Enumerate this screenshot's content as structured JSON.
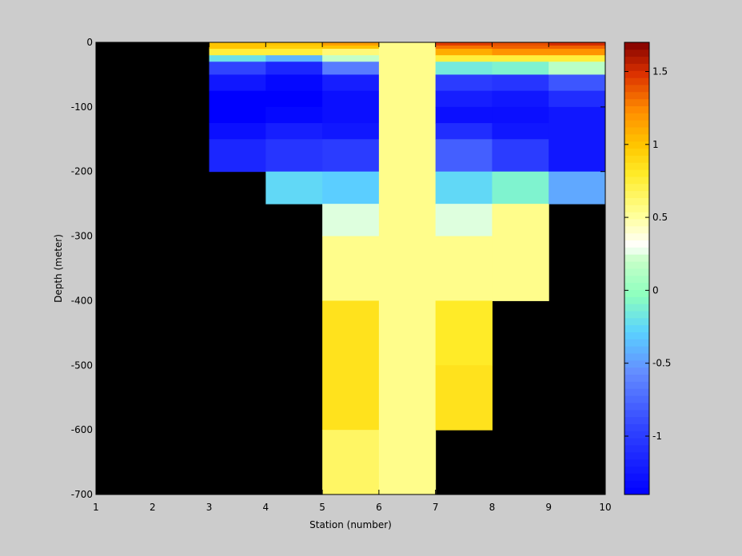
{
  "chart_data": {
    "type": "heatmap",
    "title": "",
    "xlabel": "Station (number)",
    "ylabel": "Depth (meter)",
    "xlim": [
      1,
      10
    ],
    "ylim": [
      -700,
      0
    ],
    "xticks": [
      "1",
      "2",
      "3",
      "4",
      "5",
      "6",
      "7",
      "8",
      "9",
      "10"
    ],
    "yticks": [
      "0",
      "-100",
      "-200",
      "-300",
      "-400",
      "-500",
      "-600",
      "-700"
    ],
    "colorbar": {
      "range": [
        -1.4,
        1.7
      ],
      "ticks": [
        "1.5",
        "1",
        "0.5",
        "0",
        "-0.5",
        "-1"
      ],
      "colormap": "jet-like (blue to white to yellow to dark red)"
    },
    "missing_color": "#000000",
    "background_color": "#cccccc",
    "cells": [
      {
        "x0": 3,
        "x1": 4,
        "depth_top": 0,
        "depth_bottom": -5,
        "value": 1.0
      },
      {
        "x0": 3,
        "x1": 4,
        "depth_top": -5,
        "depth_bottom": -10,
        "value": 1.0
      },
      {
        "x0": 3,
        "x1": 4,
        "depth_top": -10,
        "depth_bottom": -20,
        "value": 0.75
      },
      {
        "x0": 3,
        "x1": 4,
        "depth_top": -20,
        "depth_bottom": -30,
        "value": -0.2
      },
      {
        "x0": 3,
        "x1": 4,
        "depth_top": -30,
        "depth_bottom": -50,
        "value": -0.95
      },
      {
        "x0": 3,
        "x1": 4,
        "depth_top": -50,
        "depth_bottom": -75,
        "value": -1.25
      },
      {
        "x0": 3,
        "x1": 4,
        "depth_top": -75,
        "depth_bottom": -125,
        "value": -1.4
      },
      {
        "x0": 3,
        "x1": 4,
        "depth_top": -125,
        "depth_bottom": -150,
        "value": -1.3
      },
      {
        "x0": 3,
        "x1": 4,
        "depth_top": -150,
        "depth_bottom": -200,
        "value": -1.15
      },
      {
        "x0": 4,
        "x1": 5,
        "depth_top": 0,
        "depth_bottom": -5,
        "value": 1.0
      },
      {
        "x0": 4,
        "x1": 5,
        "depth_top": -5,
        "depth_bottom": -10,
        "value": 0.95
      },
      {
        "x0": 4,
        "x1": 5,
        "depth_top": -10,
        "depth_bottom": -20,
        "value": 0.75
      },
      {
        "x0": 4,
        "x1": 5,
        "depth_top": -20,
        "depth_bottom": -30,
        "value": -0.4
      },
      {
        "x0": 4,
        "x1": 5,
        "depth_top": -30,
        "depth_bottom": -50,
        "value": -1.15
      },
      {
        "x0": 4,
        "x1": 5,
        "depth_top": -50,
        "depth_bottom": -75,
        "value": -1.35
      },
      {
        "x0": 4,
        "x1": 5,
        "depth_top": -75,
        "depth_bottom": -100,
        "value": -1.4
      },
      {
        "x0": 4,
        "x1": 5,
        "depth_top": -100,
        "depth_bottom": -125,
        "value": -1.35
      },
      {
        "x0": 4,
        "x1": 5,
        "depth_top": -125,
        "depth_bottom": -150,
        "value": -1.2
      },
      {
        "x0": 4,
        "x1": 5,
        "depth_top": -150,
        "depth_bottom": -200,
        "value": -1.05
      },
      {
        "x0": 4,
        "x1": 5,
        "depth_top": -200,
        "depth_bottom": -250,
        "value": -0.25
      },
      {
        "x0": 5,
        "x1": 6,
        "depth_top": 0,
        "depth_bottom": -5,
        "value": 1.15
      },
      {
        "x0": 5,
        "x1": 6,
        "depth_top": -5,
        "depth_bottom": -10,
        "value": 1.0
      },
      {
        "x0": 5,
        "x1": 6,
        "depth_top": -10,
        "depth_bottom": -20,
        "value": 0.6
      },
      {
        "x0": 5,
        "x1": 6,
        "depth_top": -20,
        "depth_bottom": -30,
        "value": 0.2
      },
      {
        "x0": 5,
        "x1": 6,
        "depth_top": -30,
        "depth_bottom": -50,
        "value": -0.65
      },
      {
        "x0": 5,
        "x1": 6,
        "depth_top": -50,
        "depth_bottom": -75,
        "value": -1.2
      },
      {
        "x0": 5,
        "x1": 6,
        "depth_top": -75,
        "depth_bottom": -125,
        "value": -1.3
      },
      {
        "x0": 5,
        "x1": 6,
        "depth_top": -125,
        "depth_bottom": -150,
        "value": -1.25
      },
      {
        "x0": 5,
        "x1": 6,
        "depth_top": -150,
        "depth_bottom": -200,
        "value": -1.0
      },
      {
        "x0": 5,
        "x1": 6,
        "depth_top": -200,
        "depth_bottom": -250,
        "value": -0.3
      },
      {
        "x0": 5,
        "x1": 6,
        "depth_top": -250,
        "depth_bottom": -300,
        "value": 0.25
      },
      {
        "x0": 5,
        "x1": 6,
        "depth_top": -300,
        "depth_bottom": -400,
        "value": 0.55
      },
      {
        "x0": 5,
        "x1": 6,
        "depth_top": -400,
        "depth_bottom": -600,
        "value": 0.85
      },
      {
        "x0": 5,
        "x1": 6,
        "depth_top": -600,
        "depth_bottom": -700,
        "value": 0.65
      },
      {
        "x0": 6,
        "x1": 7,
        "depth_top": 0,
        "depth_bottom": -700,
        "value": 0.55
      },
      {
        "x0": 7,
        "x1": 8,
        "depth_top": 0,
        "depth_bottom": -5,
        "value": 1.45
      },
      {
        "x0": 7,
        "x1": 8,
        "depth_top": -5,
        "depth_bottom": -10,
        "value": 1.3
      },
      {
        "x0": 7,
        "x1": 8,
        "depth_top": -10,
        "depth_bottom": -20,
        "value": 1.1
      },
      {
        "x0": 7,
        "x1": 8,
        "depth_top": -20,
        "depth_bottom": -30,
        "value": 0.75
      },
      {
        "x0": 7,
        "x1": 8,
        "depth_top": -30,
        "depth_bottom": -50,
        "value": -0.15
      },
      {
        "x0": 7,
        "x1": 8,
        "depth_top": -50,
        "depth_bottom": -75,
        "value": -1.0
      },
      {
        "x0": 7,
        "x1": 8,
        "depth_top": -75,
        "depth_bottom": -100,
        "value": -1.2
      },
      {
        "x0": 7,
        "x1": 8,
        "depth_top": -100,
        "depth_bottom": -125,
        "value": -1.3
      },
      {
        "x0": 7,
        "x1": 8,
        "depth_top": -125,
        "depth_bottom": -150,
        "value": -1.1
      },
      {
        "x0": 7,
        "x1": 8,
        "depth_top": -150,
        "depth_bottom": -200,
        "value": -0.8
      },
      {
        "x0": 7,
        "x1": 8,
        "depth_top": -200,
        "depth_bottom": -250,
        "value": -0.25
      },
      {
        "x0": 7,
        "x1": 8,
        "depth_top": -250,
        "depth_bottom": -300,
        "value": 0.25
      },
      {
        "x0": 7,
        "x1": 8,
        "depth_top": -300,
        "depth_bottom": -400,
        "value": 0.55
      },
      {
        "x0": 7,
        "x1": 8,
        "depth_top": -400,
        "depth_bottom": -500,
        "value": 0.8
      },
      {
        "x0": 7,
        "x1": 8,
        "depth_top": -500,
        "depth_bottom": -600,
        "value": 0.85
      },
      {
        "x0": 8,
        "x1": 9,
        "depth_top": 0,
        "depth_bottom": -5,
        "value": 1.4
      },
      {
        "x0": 8,
        "x1": 9,
        "depth_top": -5,
        "depth_bottom": -10,
        "value": 1.35
      },
      {
        "x0": 8,
        "x1": 9,
        "depth_top": -10,
        "depth_bottom": -20,
        "value": 1.2
      },
      {
        "x0": 8,
        "x1": 9,
        "depth_top": -20,
        "depth_bottom": -30,
        "value": 0.75
      },
      {
        "x0": 8,
        "x1": 9,
        "depth_top": -30,
        "depth_bottom": -50,
        "value": -0.1
      },
      {
        "x0": 8,
        "x1": 9,
        "depth_top": -50,
        "depth_bottom": -75,
        "value": -1.05
      },
      {
        "x0": 8,
        "x1": 9,
        "depth_top": -75,
        "depth_bottom": -100,
        "value": -1.25
      },
      {
        "x0": 8,
        "x1": 9,
        "depth_top": -100,
        "depth_bottom": -125,
        "value": -1.3
      },
      {
        "x0": 8,
        "x1": 9,
        "depth_top": -125,
        "depth_bottom": -150,
        "value": -1.25
      },
      {
        "x0": 8,
        "x1": 9,
        "depth_top": -150,
        "depth_bottom": -200,
        "value": -1.0
      },
      {
        "x0": 8,
        "x1": 9,
        "depth_top": -200,
        "depth_bottom": -250,
        "value": -0.1
      },
      {
        "x0": 8,
        "x1": 9,
        "depth_top": -250,
        "depth_bottom": -400,
        "value": 0.55
      },
      {
        "x0": 9,
        "x1": 10,
        "depth_top": 0,
        "depth_bottom": -5,
        "value": 1.5
      },
      {
        "x0": 9,
        "x1": 10,
        "depth_top": -5,
        "depth_bottom": -10,
        "value": 1.35
      },
      {
        "x0": 9,
        "x1": 10,
        "depth_top": -10,
        "depth_bottom": -20,
        "value": 1.2
      },
      {
        "x0": 9,
        "x1": 10,
        "depth_top": -20,
        "depth_bottom": -30,
        "value": 0.75
      },
      {
        "x0": 9,
        "x1": 10,
        "depth_top": -30,
        "depth_bottom": -50,
        "value": 0.15
      },
      {
        "x0": 9,
        "x1": 10,
        "depth_top": -50,
        "depth_bottom": -75,
        "value": -0.85
      },
      {
        "x0": 9,
        "x1": 10,
        "depth_top": -75,
        "depth_bottom": -100,
        "value": -1.1
      },
      {
        "x0": 9,
        "x1": 10,
        "depth_top": -100,
        "depth_bottom": -200,
        "value": -1.25
      },
      {
        "x0": 9,
        "x1": 10,
        "depth_top": -200,
        "depth_bottom": -250,
        "value": -0.45
      }
    ]
  }
}
